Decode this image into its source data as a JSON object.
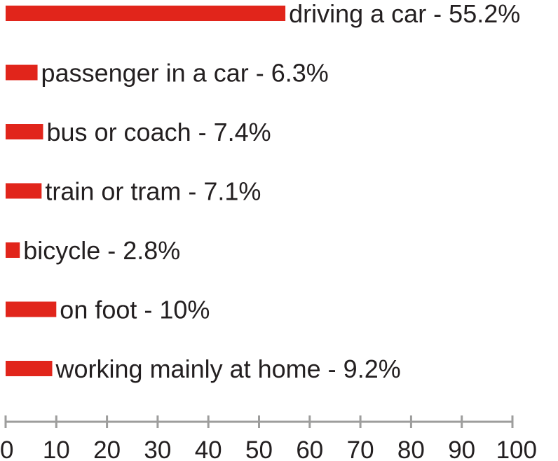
{
  "chart_data": {
    "type": "bar",
    "orientation": "horizontal",
    "categories": [
      "driving a car - 55.2%",
      "passenger in a car - 6.3%",
      "bus or coach - 7.4%",
      "train or tram - 7.1%",
      "bicycle - 2.8%",
      "on foot - 10%",
      "working mainly at home - 9.2%"
    ],
    "values": [
      55.2,
      6.3,
      7.4,
      7.1,
      2.8,
      10,
      9.2
    ],
    "xlim": [
      0,
      100
    ],
    "xticks": [
      "0",
      "10",
      "20",
      "30",
      "40",
      "50",
      "60",
      "70",
      "80",
      "90",
      "100"
    ],
    "grid": false,
    "legend": "none",
    "colors": {
      "bar": "#e1251b",
      "axis": "#9d9d9c",
      "text": "#231f20"
    }
  }
}
